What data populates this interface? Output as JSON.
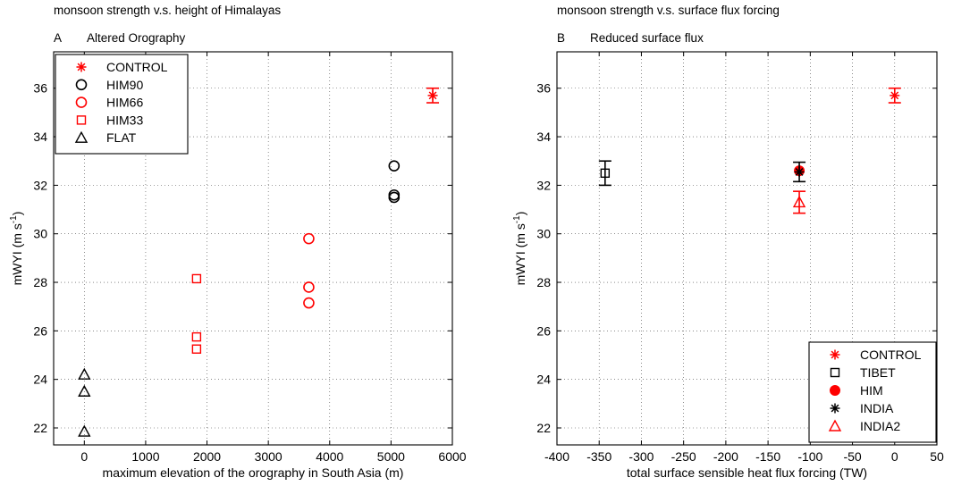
{
  "panels": [
    {
      "suptitle": "monsoon strength v.s. height of Himalayas",
      "letter": "A",
      "subtitle": "Altered Orography",
      "xlabel": "maximum elevation of the orography in South Asia (m)",
      "ylabel_main": "mWYI (m s",
      "ylabel_sup": "-1",
      "ylabel_close": ")"
    },
    {
      "suptitle": "monsoon strength v.s. surface flux forcing",
      "letter": "B",
      "subtitle": "Reduced surface flux",
      "xlabel": "total surface sensible heat flux forcing (TW)",
      "ylabel_main": "mWYI (m s",
      "ylabel_sup": "-1",
      "ylabel_close": ")"
    }
  ],
  "chart_data": [
    {
      "type": "scatter",
      "xlim": [
        -500,
        6000
      ],
      "ylim": [
        21.3,
        37.5
      ],
      "xticks": [
        0,
        1000,
        2000,
        3000,
        4000,
        5000,
        6000
      ],
      "yticks": [
        22,
        24,
        26,
        28,
        30,
        32,
        34,
        36
      ],
      "grid": true,
      "legend_position": "top-left",
      "series": [
        {
          "name": "CONTROL",
          "marker": "star",
          "color": "#ff0000",
          "points": [
            {
              "x": 5680,
              "y": 35.7,
              "err": 0.3
            }
          ]
        },
        {
          "name": "HIM90",
          "marker": "circle",
          "color": "#000000",
          "points": [
            {
              "x": 5050,
              "y": 32.8
            },
            {
              "x": 5050,
              "y": 31.6
            },
            {
              "x": 5050,
              "y": 31.5
            }
          ]
        },
        {
          "name": "HIM66",
          "marker": "circle",
          "color": "#ff0000",
          "points": [
            {
              "x": 3660,
              "y": 29.8
            },
            {
              "x": 3660,
              "y": 27.8
            },
            {
              "x": 3660,
              "y": 27.15
            }
          ]
        },
        {
          "name": "HIM33",
          "marker": "square",
          "color": "#ff0000",
          "points": [
            {
              "x": 1830,
              "y": 28.15
            },
            {
              "x": 1830,
              "y": 25.75
            },
            {
              "x": 1830,
              "y": 25.25
            }
          ]
        },
        {
          "name": "FLAT",
          "marker": "triangle",
          "color": "#000000",
          "points": [
            {
              "x": 0,
              "y": 24.2
            },
            {
              "x": 0,
              "y": 23.5
            },
            {
              "x": 0,
              "y": 21.85
            }
          ]
        }
      ]
    },
    {
      "type": "scatter",
      "xlim": [
        -400,
        50
      ],
      "ylim": [
        21.3,
        37.5
      ],
      "xticks": [
        -400,
        -350,
        -300,
        -250,
        -200,
        -150,
        -100,
        -50,
        0,
        50
      ],
      "yticks": [
        22,
        24,
        26,
        28,
        30,
        32,
        34,
        36
      ],
      "grid": true,
      "legend_position": "bottom-right",
      "series": [
        {
          "name": "CONTROL",
          "marker": "star",
          "color": "#ff0000",
          "points": [
            {
              "x": 0,
              "y": 35.7,
              "err": 0.3
            }
          ]
        },
        {
          "name": "TIBET",
          "marker": "square",
          "color": "#000000",
          "points": [
            {
              "x": -343,
              "y": 32.5,
              "err": 0.5
            }
          ]
        },
        {
          "name": "HIM",
          "marker": "dot",
          "color": "#ff0000",
          "points": [
            {
              "x": -113,
              "y": 32.6
            }
          ]
        },
        {
          "name": "INDIA",
          "marker": "star",
          "color": "#000000",
          "points": [
            {
              "x": -113,
              "y": 32.55,
              "err": 0.4
            }
          ]
        },
        {
          "name": "INDIA2",
          "marker": "triangle",
          "color": "#ff0000",
          "points": [
            {
              "x": -113,
              "y": 31.3,
              "err": 0.45
            }
          ]
        }
      ]
    }
  ]
}
